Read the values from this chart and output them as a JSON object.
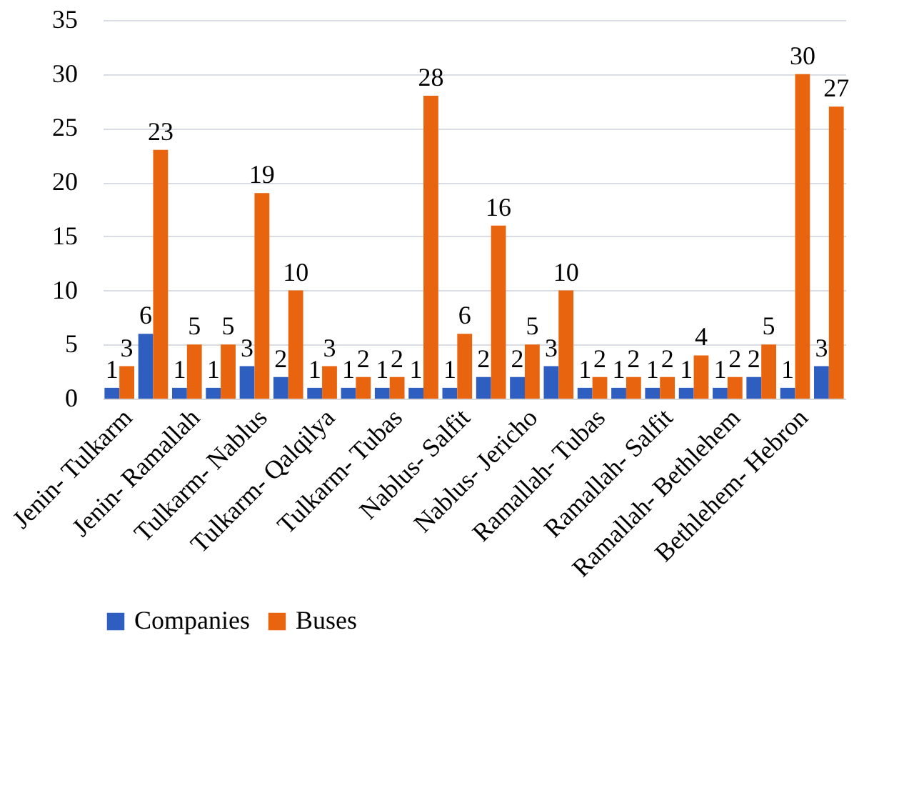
{
  "chart_data": {
    "type": "bar",
    "categories": [
      "Jenin- Tulkarm",
      null,
      "Jenin- Ramallah",
      null,
      "Tulkarm- Nablus",
      null,
      "Tulkarm- Qalqilya",
      null,
      "Tulkarm- Tubas",
      null,
      "Nablus- Salfit",
      null,
      "Nablus- Jericho",
      null,
      "Ramallah- Tubas",
      null,
      "Ramallah- Salfit",
      null,
      "Ramallah- Bethlehem",
      null,
      "Bethlehem- Hebron",
      null
    ],
    "series": [
      {
        "name": "Companies",
        "color": "#2e5fc0",
        "values": [
          1,
          6,
          1,
          1,
          3,
          2,
          1,
          1,
          1,
          1,
          1,
          2,
          2,
          3,
          1,
          1,
          1,
          1,
          1,
          2,
          1,
          3
        ]
      },
      {
        "name": "Buses",
        "color": "#e8640e",
        "values": [
          3,
          23,
          5,
          5,
          19,
          10,
          3,
          2,
          2,
          28,
          6,
          16,
          5,
          10,
          2,
          2,
          2,
          4,
          2,
          5,
          30,
          27
        ]
      }
    ],
    "ylim": [
      0,
      35
    ],
    "yticks": [
      0,
      5,
      10,
      15,
      20,
      25,
      30,
      35
    ],
    "grid": "y",
    "legend": "bottom",
    "data_labels": true
  }
}
